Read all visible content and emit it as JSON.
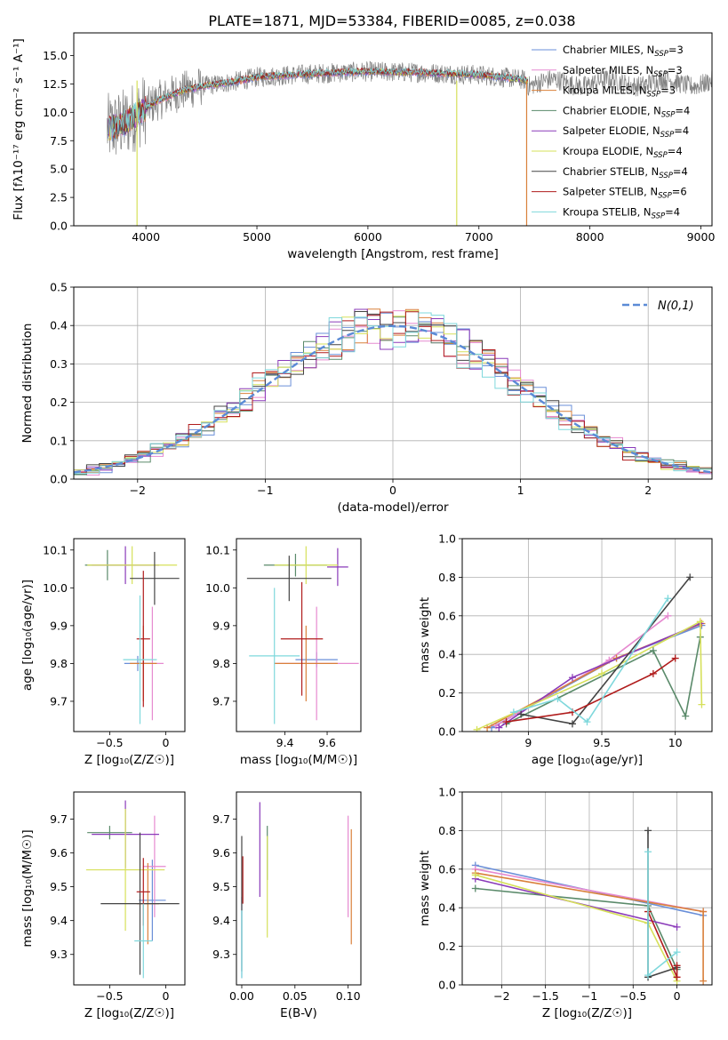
{
  "figure_title": "PLATE=1871, MJD=53384, FIBERID=0085, z=0.038",
  "legend_entries": [
    {
      "label": "Chabrier MILES, N",
      "sub": "SSP",
      "tail": "=3",
      "color": "#6a8fd8"
    },
    {
      "label": "Salpeter MILES, N",
      "sub": "SSP",
      "tail": "=3",
      "color": "#e68ad0"
    },
    {
      "label": "Kroupa MILES, N",
      "sub": "SSP",
      "tail": "=3",
      "color": "#d9803a"
    },
    {
      "label": "Chabrier ELODIE, N",
      "sub": "SSP",
      "tail": "=4",
      "color": "#5a8a6a"
    },
    {
      "label": "Salpeter ELODIE, N",
      "sub": "SSP",
      "tail": "=4",
      "color": "#8a3ab9"
    },
    {
      "label": "Kroupa ELODIE, N",
      "sub": "SSP",
      "tail": "=4",
      "color": "#d6e05a"
    },
    {
      "label": "Chabrier STELIB, N",
      "sub": "SSP",
      "tail": "=4",
      "color": "#444444"
    },
    {
      "label": "Salpeter STELIB, N",
      "sub": "SSP",
      "tail": "=6",
      "color": "#b01c1c"
    },
    {
      "label": "Kroupa STELIB, N",
      "sub": "SSP",
      "tail": "=4",
      "color": "#7fd8dc"
    }
  ],
  "chart_data": [
    {
      "id": "spectrum",
      "type": "line",
      "xlabel": "wavelength [Angstrom, rest frame]",
      "ylabel": "Flux [fλ10⁻¹⁷ erg cm⁻² s⁻¹ A⁻¹]",
      "xlim": [
        3350,
        9100
      ],
      "ylim": [
        0,
        17
      ],
      "xticks": [
        4000,
        5000,
        6000,
        7000,
        8000,
        9000
      ],
      "yticks": [
        0.0,
        2.5,
        5.0,
        7.5,
        10.0,
        12.5,
        15.0
      ],
      "data_color": "#808080",
      "continuum": [
        [
          3650,
          8.5
        ],
        [
          3800,
          9.0
        ],
        [
          3950,
          10.0
        ],
        [
          4100,
          11.0
        ],
        [
          4300,
          11.8
        ],
        [
          4500,
          12.3
        ],
        [
          4800,
          12.7
        ],
        [
          5000,
          13.1
        ],
        [
          5500,
          13.4
        ],
        [
          6000,
          13.6
        ],
        [
          6500,
          13.5
        ],
        [
          7000,
          13.3
        ],
        [
          7300,
          13.0
        ],
        [
          7440,
          12.8
        ]
      ],
      "dropouts": [
        {
          "x": 3920,
          "color": "#d6e05a"
        },
        {
          "x": 6800,
          "color": "#d6e05a"
        },
        {
          "x": 7430,
          "color": "#d9803a"
        }
      ]
    },
    {
      "id": "residuals",
      "type": "histogram",
      "xlabel": "(data-model)/error",
      "ylabel": "Normed distribution",
      "xlim": [
        -2.5,
        2.5
      ],
      "ylim": [
        0,
        0.5
      ],
      "xticks": [
        -2,
        -1,
        0,
        1,
        2
      ],
      "yticks": [
        0.0,
        0.1,
        0.2,
        0.3,
        0.4,
        0.5
      ],
      "grid": true,
      "legend": "N(0,1)",
      "normal_color": "#5b8bd6"
    },
    {
      "id": "age_vs_Z",
      "type": "scatter",
      "xlabel": "Z [log₁₀(Z/Z☉)]",
      "ylabel": "age  [log₁₀(age/yr)]",
      "xlim": [
        -0.82,
        0.17
      ],
      "ylim": [
        9.62,
        10.13
      ],
      "xticks": [
        -0.5,
        0.0
      ],
      "yticks": [
        9.7,
        9.8,
        9.9,
        10.0,
        10.1
      ],
      "points": [
        {
          "x": -0.25,
          "y": 9.8,
          "xerr": 0.12,
          "yerr": 0.02,
          "color": "#6a8fd8"
        },
        {
          "x": -0.12,
          "y": 9.8,
          "xerr": 0.1,
          "yerr": 0.15,
          "color": "#e68ad0"
        },
        {
          "x": -0.2,
          "y": 9.8,
          "xerr": 0.12,
          "yerr": 0.1,
          "color": "#d9803a"
        },
        {
          "x": -0.52,
          "y": 10.06,
          "xerr": 0.2,
          "yerr": 0.04,
          "color": "#5a8a6a"
        },
        {
          "x": -0.36,
          "y": 10.06,
          "xerr": 0.3,
          "yerr": 0.05,
          "color": "#8a3ab9"
        },
        {
          "x": -0.3,
          "y": 10.06,
          "xerr": 0.4,
          "yerr": 0.05,
          "color": "#d6e05a"
        },
        {
          "x": -0.1,
          "y": 10.025,
          "xerr": 0.22,
          "yerr": 0.07,
          "color": "#444444"
        },
        {
          "x": -0.2,
          "y": 9.865,
          "xerr": 0.06,
          "yerr": 0.18,
          "color": "#b01c1c"
        },
        {
          "x": -0.23,
          "y": 9.81,
          "xerr": 0.15,
          "yerr": 0.17,
          "color": "#7fd8dc"
        }
      ]
    },
    {
      "id": "age_vs_mass",
      "type": "scatter",
      "xlabel": "mass [log₁₀(M/M☉)]",
      "ylabel": "",
      "xlim": [
        9.17,
        9.76
      ],
      "ylim": [
        9.62,
        10.13
      ],
      "xticks": [
        9.4,
        9.6
      ],
      "yticks": [
        9.7,
        9.8,
        9.9,
        10.0,
        10.1
      ],
      "points": [
        {
          "x": 9.55,
          "y": 9.81,
          "xerr": 0.1,
          "yerr": 0.02,
          "color": "#6a8fd8"
        },
        {
          "x": 9.55,
          "y": 9.8,
          "xerr": 0.2,
          "yerr": 0.15,
          "color": "#e68ad0"
        },
        {
          "x": 9.5,
          "y": 9.8,
          "xerr": 0.15,
          "yerr": 0.1,
          "color": "#d9803a"
        },
        {
          "x": 9.45,
          "y": 10.06,
          "xerr": 0.15,
          "yerr": 0.03,
          "color": "#5a8a6a"
        },
        {
          "x": 9.65,
          "y": 10.055,
          "xerr": 0.05,
          "yerr": 0.05,
          "color": "#8a3ab9"
        },
        {
          "x": 9.5,
          "y": 10.06,
          "xerr": 0.15,
          "yerr": 0.05,
          "color": "#d6e05a"
        },
        {
          "x": 9.42,
          "y": 10.025,
          "xerr": 0.2,
          "yerr": 0.06,
          "color": "#444444"
        },
        {
          "x": 9.48,
          "y": 9.865,
          "xerr": 0.1,
          "yerr": 0.15,
          "color": "#b01c1c"
        },
        {
          "x": 9.35,
          "y": 9.82,
          "xerr": 0.12,
          "yerr": 0.18,
          "color": "#7fd8dc"
        }
      ]
    },
    {
      "id": "massweight_vs_age",
      "type": "line",
      "xlabel": "age  [log₁₀(age/yr)]",
      "ylabel": "mass weight",
      "xlim": [
        8.55,
        10.25
      ],
      "ylim": [
        0,
        1
      ],
      "xticks": [
        9.0,
        9.5,
        10.0
      ],
      "yticks": [
        0.0,
        0.2,
        0.4,
        0.6,
        0.8,
        1.0
      ],
      "grid": true,
      "series": [
        {
          "color": "#6a8fd8",
          "x": [
            8.75,
            9.6,
            10.18
          ],
          "y": [
            0.02,
            0.38,
            0.55
          ]
        },
        {
          "color": "#e68ad0",
          "x": [
            8.78,
            9.55,
            9.95
          ],
          "y": [
            0.03,
            0.37,
            0.6
          ]
        },
        {
          "color": "#d9803a",
          "x": [
            8.72,
            9.6,
            10.18
          ],
          "y": [
            0.02,
            0.38,
            0.56
          ]
        },
        {
          "color": "#5a8a6a",
          "x": [
            8.85,
            9.85,
            10.07,
            10.17
          ],
          "y": [
            0.04,
            0.42,
            0.08,
            0.49
          ]
        },
        {
          "color": "#8a3ab9",
          "x": [
            8.8,
            9.3,
            10.17
          ],
          "y": [
            0.02,
            0.28,
            0.56
          ]
        },
        {
          "color": "#d6e05a",
          "x": [
            8.65,
            9.5,
            10.17,
            10.18
          ],
          "y": [
            0.01,
            0.3,
            0.57,
            0.14
          ]
        },
        {
          "color": "#444444",
          "x": [
            8.95,
            9.3,
            10.1
          ],
          "y": [
            0.09,
            0.04,
            0.8
          ]
        },
        {
          "color": "#b01c1c",
          "x": [
            8.85,
            9.3,
            9.85,
            10.0
          ],
          "y": [
            0.05,
            0.1,
            0.3,
            0.38
          ]
        },
        {
          "color": "#7fd8dc",
          "x": [
            8.9,
            9.2,
            9.4,
            9.95
          ],
          "y": [
            0.1,
            0.17,
            0.05,
            0.69
          ]
        }
      ]
    },
    {
      "id": "mass_vs_Z",
      "type": "scatter",
      "xlabel": "Z [log₁₀(Z/Z☉)]",
      "ylabel": "mass [log₁₀(M/M☉)]",
      "xlim": [
        -0.82,
        0.17
      ],
      "ylim": [
        9.21,
        9.78
      ],
      "xticks": [
        -0.5,
        0.0
      ],
      "yticks": [
        9.3,
        9.4,
        9.5,
        9.6,
        9.7
      ],
      "points": [
        {
          "x": -0.12,
          "y": 9.46,
          "xerr": 0.12,
          "yerr": 0.12,
          "color": "#6a8fd8"
        },
        {
          "x": -0.1,
          "y": 9.56,
          "xerr": 0.1,
          "yerr": 0.15,
          "color": "#e68ad0"
        },
        {
          "x": -0.16,
          "y": 9.45,
          "xerr": 0.1,
          "yerr": 0.12,
          "color": "#d9803a"
        },
        {
          "x": -0.5,
          "y": 9.66,
          "xerr": 0.2,
          "yerr": 0.02,
          "color": "#5a8a6a"
        },
        {
          "x": -0.36,
          "y": 9.655,
          "xerr": 0.3,
          "yerr": 0.1,
          "color": "#8a3ab9"
        },
        {
          "x": -0.36,
          "y": 9.55,
          "xerr": 0.35,
          "yerr": 0.18,
          "color": "#d6e05a"
        },
        {
          "x": -0.23,
          "y": 9.45,
          "xerr": 0.35,
          "yerr": 0.21,
          "color": "#444444"
        },
        {
          "x": -0.2,
          "y": 9.485,
          "xerr": 0.06,
          "yerr": 0.1,
          "color": "#b01c1c"
        },
        {
          "x": -0.2,
          "y": 9.34,
          "xerr": 0.08,
          "yerr": 0.11,
          "color": "#7fd8dc"
        }
      ]
    },
    {
      "id": "mass_vs_ebv",
      "type": "scatter",
      "xlabel": "E(B-V)",
      "ylabel": "",
      "xlim": [
        -0.005,
        0.112
      ],
      "ylim": [
        9.21,
        9.78
      ],
      "xticks": [
        0.0,
        0.05,
        0.1
      ],
      "xticklabels": [
        "0.00",
        "0.05",
        "0.10"
      ],
      "yticks": [
        9.3,
        9.4,
        9.5,
        9.6,
        9.7
      ],
      "points": [
        {
          "x": 0.0,
          "y": 9.35,
          "yerr": 0.12,
          "color": "#6a8fd8"
        },
        {
          "x": 0.1,
          "y": 9.56,
          "yerr": 0.15,
          "color": "#e68ad0"
        },
        {
          "x": 0.103,
          "y": 9.5,
          "yerr": 0.17,
          "color": "#d9803a"
        },
        {
          "x": 0.024,
          "y": 9.6,
          "yerr": 0.08,
          "color": "#5a8a6a"
        },
        {
          "x": 0.017,
          "y": 9.61,
          "yerr": 0.14,
          "color": "#8a3ab9"
        },
        {
          "x": 0.024,
          "y": 9.5,
          "yerr": 0.15,
          "color": "#d6e05a"
        },
        {
          "x": 0.0,
          "y": 9.45,
          "yerr": 0.2,
          "color": "#444444"
        },
        {
          "x": 0.001,
          "y": 9.52,
          "yerr": 0.07,
          "color": "#b01c1c"
        },
        {
          "x": 0.0,
          "y": 9.33,
          "yerr": 0.1,
          "color": "#7fd8dc"
        }
      ]
    },
    {
      "id": "massweight_vs_Z",
      "type": "line",
      "xlabel": "Z [log₁₀(Z/Z☉)]",
      "ylabel": "mass weight",
      "xlim": [
        -2.45,
        0.4
      ],
      "ylim": [
        0,
        1
      ],
      "xticks": [
        -2.0,
        -1.5,
        -1.0,
        -0.5,
        0.0
      ],
      "yticks": [
        0.0,
        0.2,
        0.4,
        0.6,
        0.8,
        1.0
      ],
      "grid": true,
      "series": [
        {
          "color": "#6a8fd8",
          "x": [
            -2.3,
            0.3
          ],
          "y": [
            0.62,
            0.36
          ]
        },
        {
          "color": "#e68ad0",
          "x": [
            -2.3,
            0.3
          ],
          "y": [
            0.6,
            0.38
          ]
        },
        {
          "color": "#d9803a",
          "x": [
            -2.3,
            0.3,
            0.3
          ],
          "y": [
            0.58,
            0.38,
            0.02
          ]
        },
        {
          "color": "#5a8a6a",
          "x": [
            -2.3,
            -0.33,
            0.0
          ],
          "y": [
            0.5,
            0.41,
            0.08
          ]
        },
        {
          "color": "#8a3ab9",
          "x": [
            -2.3,
            0.0
          ],
          "y": [
            0.55,
            0.3
          ]
        },
        {
          "color": "#d6e05a",
          "x": [
            -2.3,
            -0.33,
            0.0
          ],
          "y": [
            0.57,
            0.32,
            0.02
          ]
        },
        {
          "color": "#444444",
          "x": [
            -0.33,
            -0.33,
            0.0
          ],
          "y": [
            0.8,
            0.04,
            0.09
          ]
        },
        {
          "color": "#b01c1c",
          "x": [
            -0.33,
            0.0,
            0.0
          ],
          "y": [
            0.38,
            0.04,
            0.1
          ]
        },
        {
          "color": "#7fd8dc",
          "x": [
            -0.33,
            -0.33,
            0.0
          ],
          "y": [
            0.69,
            0.05,
            0.17
          ]
        }
      ]
    }
  ]
}
